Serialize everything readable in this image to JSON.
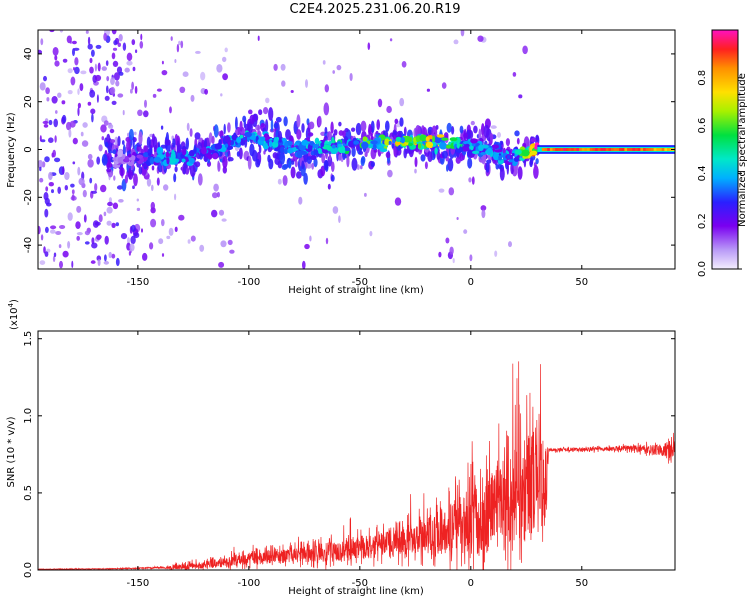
{
  "title": "C2E4.2025.231.06.20.R19",
  "colors": {
    "signal": "#ee2222",
    "spectral_low": "#6a00f0",
    "spectral_mid": "#00d8e0",
    "spectral_high": "#ff1a2a"
  },
  "chart_data": [
    {
      "type": "heatmap",
      "title": "C2E4.2025.231.06.20.R19",
      "xlabel": "Height of straight line (km)",
      "ylabel": "Frequency (Hz)",
      "xlim": [
        -195,
        92
      ],
      "ylim": [
        -50,
        50
      ],
      "x_ticks": [
        -150,
        -100,
        -50,
        0,
        50
      ],
      "y_ticks": [
        -40,
        -20,
        0,
        20,
        40
      ],
      "colorbar": {
        "label": "Normalized spectral amplitude",
        "range": [
          0.0,
          1.0
        ],
        "ticks": [
          "0.0",
          "0.2",
          "0.4",
          "0.6",
          "0.8"
        ],
        "tick_values": [
          0.0,
          0.2,
          0.4,
          0.6,
          0.8
        ]
      },
      "ridge": {
        "x": [
          -160,
          -140,
          -120,
          -100,
          -80,
          -60,
          -40,
          -20,
          0,
          20,
          30,
          50,
          70,
          90
        ],
        "frequency": [
          -4,
          -4,
          -2,
          6,
          0,
          1,
          3,
          3,
          1,
          -3,
          0,
          0,
          0,
          1
        ],
        "amplitude": [
          0.1,
          0.4,
          0.35,
          0.4,
          0.35,
          0.45,
          0.6,
          0.75,
          0.4,
          0.35,
          0.95,
          0.95,
          0.95,
          0.85
        ]
      }
    },
    {
      "type": "line",
      "xlabel": "Height of straight line (km)",
      "ylabel": "SNR (10 * v/v)",
      "y_multiplier": "(x10",
      "y_multiplier_exp": "4",
      "y_multiplier_close": ")",
      "xlim": [
        -195,
        92
      ],
      "ylim": [
        0,
        1.55
      ],
      "x_ticks": [
        -150,
        -100,
        -50,
        0,
        50
      ],
      "y_ticks": [
        0.0,
        0.5,
        1.0,
        1.5
      ],
      "y_tick_labels": [
        "0.0",
        "0.5",
        "1.0",
        "1.5"
      ],
      "series": [
        {
          "x": [
            -195,
            -160,
            -140,
            -130,
            -120,
            -100,
            -80,
            -60,
            -40,
            -20,
            -10,
            0,
            10,
            20,
            25,
            30,
            34,
            35,
            50,
            70,
            85,
            92
          ],
          "mean": [
            0.005,
            0.008,
            0.015,
            0.02,
            0.03,
            0.07,
            0.1,
            0.12,
            0.16,
            0.22,
            0.26,
            0.32,
            0.38,
            0.45,
            0.5,
            0.55,
            0.55,
            0.78,
            0.78,
            0.79,
            0.78,
            0.77
          ],
          "spread": [
            0.003,
            0.004,
            0.01,
            0.03,
            0.04,
            0.07,
            0.09,
            0.12,
            0.15,
            0.2,
            0.3,
            0.4,
            0.5,
            0.6,
            0.7,
            0.6,
            0.55,
            0.02,
            0.02,
            0.03,
            0.06,
            0.15
          ]
        }
      ]
    }
  ]
}
